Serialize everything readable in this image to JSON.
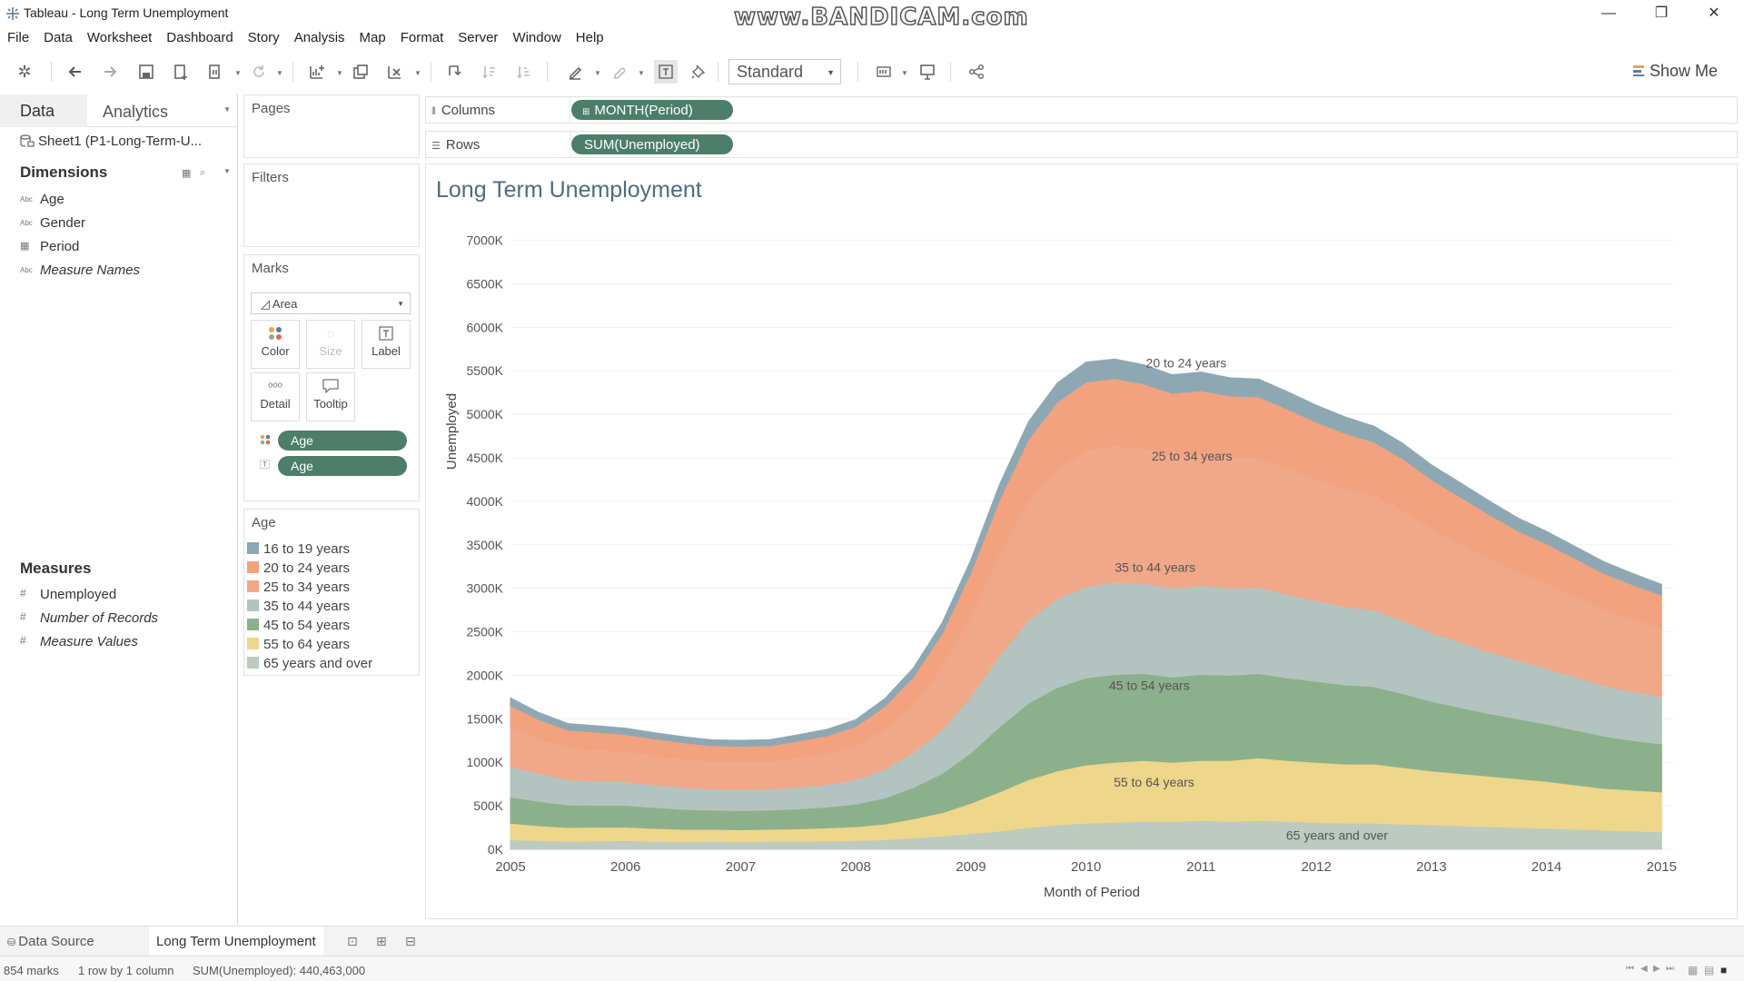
{
  "window": {
    "title": "Tableau - Long Term Unemployment",
    "watermark": "www.BANDICAM.com",
    "minimize": "—",
    "restore": "❐",
    "close": "✕"
  },
  "menu": [
    "File",
    "Data",
    "Worksheet",
    "Dashboard",
    "Story",
    "Analysis",
    "Map",
    "Format",
    "Server",
    "Window",
    "Help"
  ],
  "toolbar": {
    "fit": "Standard",
    "show_me": "Show Me"
  },
  "data_pane": {
    "tab_data": "Data",
    "tab_analytics": "Analytics",
    "data_source": "Sheet1 (P1-Long-Term-U...",
    "dimensions_header": "Dimensions",
    "dimensions": [
      {
        "type": "Abc",
        "name": "Age"
      },
      {
        "type": "Abc",
        "name": "Gender"
      },
      {
        "type": "▦",
        "name": "Period"
      },
      {
        "type": "Abc",
        "name": "Measure Names"
      }
    ],
    "measures_header": "Measures",
    "measures": [
      {
        "type": "#",
        "name": "Unemployed"
      },
      {
        "type": "#",
        "name": "Number of Records"
      },
      {
        "type": "#",
        "name": "Measure Values"
      }
    ]
  },
  "cards": {
    "pages": "Pages",
    "filters": "Filters",
    "marks": "Marks",
    "mark_type": "Area",
    "mark_buttons": {
      "color": "Color",
      "size": "Size",
      "label": "Label",
      "detail": "Detail",
      "tooltip": "Tooltip"
    },
    "mark_pills": [
      "Age",
      "Age"
    ],
    "legend_title": "Age"
  },
  "shelves": {
    "columns_label": "Columns",
    "columns_pill": "MONTH(Period)",
    "rows_label": "Rows",
    "rows_pill": "SUM(Unemployed)"
  },
  "view": {
    "title": "Long Term Unemployment"
  },
  "chart_data": {
    "type": "area",
    "stacked": true,
    "title": "Long Term Unemployment",
    "xlabel": "Month of Period",
    "ylabel": "Unemployed",
    "ylim": [
      0,
      7100000
    ],
    "yticks": [
      "0K",
      "500K",
      "1000K",
      "1500K",
      "2000K",
      "2500K",
      "3000K",
      "3500K",
      "4000K",
      "4500K",
      "5000K",
      "5500K",
      "6000K",
      "6500K",
      "7000K"
    ],
    "xticks": [
      "2005",
      "2006",
      "2007",
      "2008",
      "2009",
      "2010",
      "2011",
      "2012",
      "2013",
      "2014",
      "2015"
    ],
    "x": [
      2005.0,
      2005.25,
      2005.5,
      2005.75,
      2006.0,
      2006.25,
      2006.5,
      2006.75,
      2007.0,
      2007.25,
      2007.5,
      2007.75,
      2008.0,
      2008.25,
      2008.5,
      2008.75,
      2009.0,
      2009.25,
      2009.5,
      2009.75,
      2010.0,
      2010.25,
      2010.5,
      2010.75,
      2011.0,
      2011.25,
      2011.5,
      2011.75,
      2012.0,
      2012.25,
      2012.5,
      2012.75,
      2013.0,
      2013.25,
      2013.5,
      2013.75,
      2014.0,
      2014.25,
      2014.5,
      2014.75,
      2015.0
    ],
    "series": [
      {
        "name": "65 years and over",
        "color": "#bccabf",
        "label": "65 years and over",
        "values": [
          110000,
          100000,
          90000,
          95000,
          100000,
          90000,
          85000,
          90000,
          85000,
          90000,
          90000,
          95000,
          100000,
          110000,
          130000,
          150000,
          180000,
          210000,
          250000,
          280000,
          300000,
          310000,
          320000,
          320000,
          330000,
          320000,
          330000,
          320000,
          310000,
          300000,
          300000,
          290000,
          280000,
          270000,
          260000,
          250000,
          240000,
          230000,
          220000,
          210000,
          200000
        ]
      },
      {
        "name": "55 to 64 years",
        "color": "#eed68a",
        "label": "55 to 64 years",
        "values": [
          190000,
          170000,
          160000,
          160000,
          155000,
          150000,
          145000,
          140000,
          140000,
          140000,
          145000,
          150000,
          160000,
          180000,
          220000,
          270000,
          350000,
          450000,
          550000,
          620000,
          670000,
          690000,
          700000,
          680000,
          690000,
          700000,
          720000,
          700000,
          690000,
          680000,
          680000,
          650000,
          620000,
          600000,
          580000,
          560000,
          540000,
          510000,
          480000,
          470000,
          460000
        ]
      },
      {
        "name": "45 to 54 years",
        "color": "#8db08c",
        "label": "45 to 54 years",
        "values": [
          300000,
          280000,
          260000,
          250000,
          250000,
          240000,
          230000,
          220000,
          220000,
          220000,
          230000,
          240000,
          260000,
          300000,
          360000,
          450000,
          580000,
          750000,
          880000,
          960000,
          1000000,
          1010000,
          1000000,
          980000,
          990000,
          980000,
          970000,
          950000,
          930000,
          910000,
          890000,
          850000,
          800000,
          760000,
          720000,
          690000,
          660000,
          630000,
          600000,
          570000,
          550000
        ]
      },
      {
        "name": "35 to 44 years",
        "color": "#b3c4c0",
        "label": "35 to 44 years",
        "values": [
          350000,
          320000,
          290000,
          280000,
          270000,
          260000,
          250000,
          240000,
          240000,
          240000,
          250000,
          260000,
          280000,
          330000,
          400000,
          500000,
          650000,
          820000,
          950000,
          1020000,
          1050000,
          1060000,
          1040000,
          1020000,
          1020000,
          1000000,
          990000,
          960000,
          930000,
          900000,
          880000,
          840000,
          790000,
          750000,
          710000,
          670000,
          640000,
          610000,
          580000,
          560000,
          540000
        ]
      },
      {
        "name": "25 to 34 years",
        "color": "#f0a888",
        "label": "25 to 34 years",
        "values": [
          450000,
          400000,
          370000,
          360000,
          350000,
          340000,
          330000,
          320000,
          320000,
          320000,
          340000,
          360000,
          390000,
          460000,
          560000,
          720000,
          930000,
          1180000,
          1380000,
          1500000,
          1560000,
          1570000,
          1550000,
          1520000,
          1520000,
          1500000,
          1490000,
          1450000,
          1400000,
          1360000,
          1320000,
          1270000,
          1200000,
          1140000,
          1080000,
          1020000,
          980000,
          930000,
          880000,
          840000,
          800000
        ]
      },
      {
        "name": "20 to 24 years",
        "color": "#f2a27f",
        "label": "20 to 24 years",
        "values": [
          250000,
          220000,
          200000,
          200000,
          195000,
          190000,
          185000,
          180000,
          180000,
          180000,
          190000,
          200000,
          220000,
          260000,
          310000,
          390000,
          490000,
          610000,
          700000,
          760000,
          790000,
          770000,
          740000,
          720000,
          720000,
          710000,
          700000,
          680000,
          650000,
          630000,
          610000,
          590000,
          560000,
          530000,
          500000,
          470000,
          450000,
          430000,
          410000,
          390000,
          370000
        ]
      },
      {
        "name": "16 to 19 years",
        "color": "#8ea8b3",
        "label": "",
        "values": [
          90000,
          80000,
          75000,
          75000,
          72000,
          70000,
          70000,
          68000,
          68000,
          70000,
          72000,
          75000,
          80000,
          90000,
          105000,
          125000,
          150000,
          180000,
          205000,
          220000,
          230000,
          225000,
          220000,
          215000,
          215000,
          210000,
          205000,
          200000,
          195000,
          190000,
          185000,
          178000,
          170000,
          165000,
          158000,
          150000,
          145000,
          140000,
          135000,
          130000,
          125000
        ]
      }
    ],
    "legend": [
      {
        "name": "16 to 19 years",
        "color": "#8ea8b3"
      },
      {
        "name": "20 to 24 years",
        "color": "#f2a27f"
      },
      {
        "name": "25 to 34 years",
        "color": "#f0a888"
      },
      {
        "name": "35 to 44 years",
        "color": "#b3c4c0"
      },
      {
        "name": "45 to 54 years",
        "color": "#8db08c"
      },
      {
        "name": "55 to 64 years",
        "color": "#eed68a"
      },
      {
        "name": "65 years and over",
        "color": "#bccabf"
      }
    ],
    "label_positions": [
      {
        "name": "20 to 24 years",
        "x": 2010.87,
        "y": 5540000
      },
      {
        "name": "25 to 34 years",
        "x": 2010.92,
        "y": 4470000
      },
      {
        "name": "35 to 44 years",
        "x": 2010.6,
        "y": 3190000
      },
      {
        "name": "45 to 54 years",
        "x": 2010.55,
        "y": 1830000
      },
      {
        "name": "55 to 64 years",
        "x": 2010.59,
        "y": 720000
      },
      {
        "name": "65 years and over",
        "x": 2012.18,
        "y": 110000
      }
    ]
  },
  "tabs": {
    "data_source": "Data Source",
    "sheet": "Long Term Unemployment"
  },
  "status": {
    "marks": "854 marks",
    "dims": "1 row by 1 column",
    "sum": "SUM(Unemployed): 440,463,000"
  }
}
